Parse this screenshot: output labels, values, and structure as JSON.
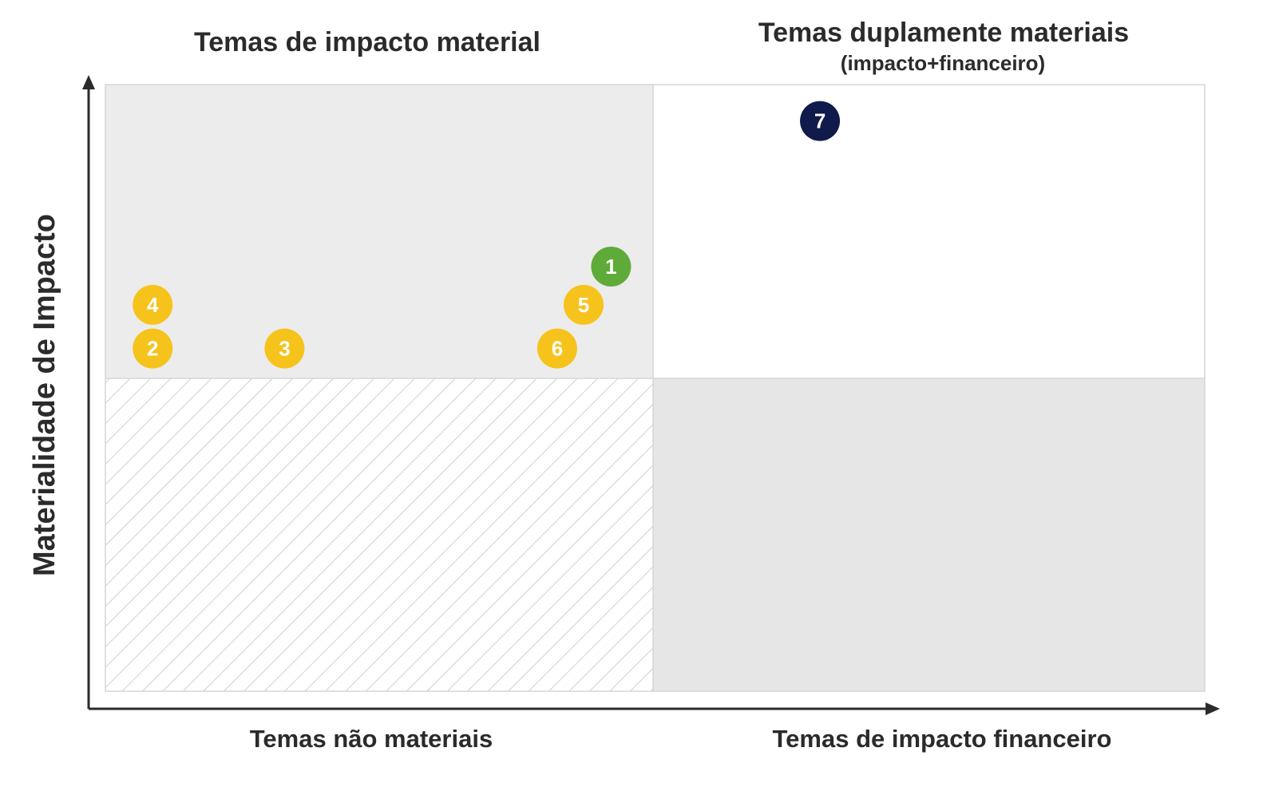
{
  "chart_data": {
    "type": "scatter",
    "xlabel": "",
    "ylabel": "Materialidade de Impacto",
    "xlim": [
      0,
      100
    ],
    "ylim": [
      0,
      100
    ],
    "grid": false,
    "quadrants": {
      "top_left": {
        "title": "Temas de impacto material",
        "subtitle": "",
        "fill": "#ececec"
      },
      "top_right": {
        "title": "Temas duplamente materiais",
        "subtitle": "(impacto+financeiro)",
        "fill": "#ffffff"
      },
      "bottom_left": {
        "title": "Temas não materiais",
        "subtitle": "",
        "fill": "hatched"
      },
      "bottom_right": {
        "title": "Temas de impacto financeiro",
        "subtitle": "",
        "fill": "#e6e6e6"
      }
    },
    "points": [
      {
        "label": "1",
        "x": 46,
        "y": 70,
        "color": "#5fab3a"
      },
      {
        "label": "2",
        "x": 4.3,
        "y": 56.5,
        "color": "#f6c31c"
      },
      {
        "label": "3",
        "x": 16.3,
        "y": 56.5,
        "color": "#f6c31c"
      },
      {
        "label": "4",
        "x": 4.3,
        "y": 63.7,
        "color": "#f6c31c"
      },
      {
        "label": "5",
        "x": 43.5,
        "y": 63.7,
        "color": "#f6c31c"
      },
      {
        "label": "6",
        "x": 41.1,
        "y": 56.5,
        "color": "#f6c31c"
      },
      {
        "label": "7",
        "x": 65,
        "y": 94,
        "color": "#101a4b"
      }
    ]
  }
}
